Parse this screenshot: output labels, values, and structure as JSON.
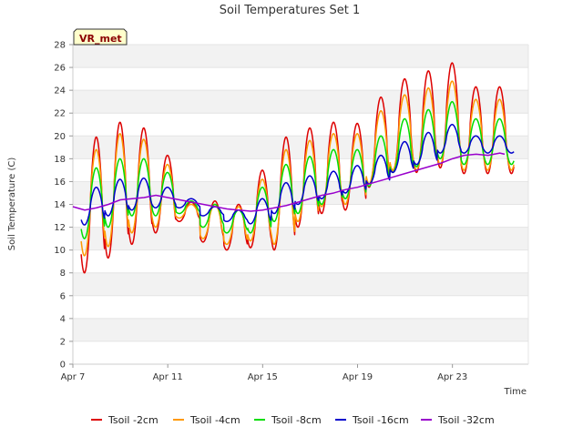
{
  "chart_data": {
    "type": "line",
    "title": "Soil Temperatures Set 1",
    "xlabel": "Time",
    "ylabel": "Soil Temperature (C)",
    "badge": "VR_met",
    "xlim": [
      0,
      19.2
    ],
    "ylim": [
      0,
      28
    ],
    "yticks": [
      0,
      2,
      4,
      6,
      8,
      10,
      12,
      14,
      16,
      18,
      20,
      22,
      24,
      26,
      28
    ],
    "xticks": [
      {
        "day": 0,
        "label": "Apr 7"
      },
      {
        "day": 4,
        "label": "Apr 11"
      },
      {
        "day": 8,
        "label": "Apr 15"
      },
      {
        "day": 12,
        "label": "Apr 19"
      },
      {
        "day": 16,
        "label": "Apr 23"
      }
    ],
    "grid": "horizontal alternating bands",
    "legend_position": "bottom",
    "series": [
      {
        "name": "Tsoil -2cm",
        "color": "#dd0000",
        "mins": [
          8.0,
          9.3,
          10.5,
          11.5,
          12.5,
          10.7,
          10.0,
          10.2,
          10.0,
          12.0,
          13.2,
          13.5,
          15.5,
          16.8,
          16.8,
          17.2,
          16.7
        ],
        "maxs": [
          19.9,
          21.2,
          20.7,
          18.3,
          14.2,
          14.3,
          14.0,
          17.0,
          19.9,
          20.7,
          21.2,
          21.1,
          23.4,
          25.0,
          25.7,
          26.4,
          24.3
        ]
      },
      {
        "name": "Tsoil -4cm",
        "color": "#ff9900",
        "mins": [
          9.5,
          10.3,
          11.5,
          12.0,
          12.8,
          11.0,
          10.5,
          10.8,
          10.5,
          12.5,
          13.8,
          14.0,
          15.8,
          17.0,
          17.0,
          17.5,
          17.0
        ],
        "maxs": [
          18.8,
          20.2,
          19.7,
          17.5,
          14.0,
          14.0,
          13.8,
          16.2,
          18.8,
          19.6,
          20.2,
          20.2,
          22.2,
          23.6,
          24.2,
          24.8,
          23.2
        ]
      },
      {
        "name": "Tsoil -8cm",
        "color": "#00dd00",
        "mins": [
          11.0,
          12.0,
          13.0,
          13.0,
          13.2,
          12.0,
          11.5,
          11.5,
          12.5,
          13.2,
          14.0,
          14.5,
          15.6,
          16.8,
          17.3,
          18.0,
          17.5
        ],
        "maxs": [
          17.2,
          18.0,
          18.0,
          16.8,
          14.3,
          14.0,
          13.5,
          15.5,
          17.5,
          18.2,
          18.8,
          18.8,
          20.0,
          21.5,
          22.3,
          23.0,
          21.5
        ]
      },
      {
        "name": "Tsoil -16cm",
        "color": "#0000cc",
        "mins": [
          12.2,
          13.0,
          13.5,
          13.7,
          13.7,
          13.0,
          12.5,
          12.3,
          13.2,
          14.0,
          14.5,
          15.0,
          15.8,
          16.8,
          17.5,
          18.5,
          18.5
        ],
        "maxs": [
          15.5,
          16.2,
          16.3,
          15.5,
          14.5,
          13.8,
          13.5,
          14.5,
          15.9,
          16.5,
          16.9,
          17.4,
          18.3,
          19.5,
          20.3,
          21.0,
          20.0
        ]
      },
      {
        "name": "Tsoil -32cm",
        "color": "#9900cc",
        "points": [
          [
            0,
            13.8
          ],
          [
            0.5,
            13.5
          ],
          [
            1,
            13.7
          ],
          [
            1.5,
            14.0
          ],
          [
            2,
            14.4
          ],
          [
            2.5,
            14.5
          ],
          [
            3,
            14.6
          ],
          [
            3.5,
            14.8
          ],
          [
            4,
            14.6
          ],
          [
            4.5,
            14.4
          ],
          [
            5,
            14.2
          ],
          [
            5.5,
            14.0
          ],
          [
            6,
            13.8
          ],
          [
            6.5,
            13.6
          ],
          [
            7,
            13.5
          ],
          [
            7.5,
            13.4
          ],
          [
            8,
            13.5
          ],
          [
            8.5,
            13.7
          ],
          [
            9,
            13.9
          ],
          [
            9.5,
            14.2
          ],
          [
            10,
            14.5
          ],
          [
            10.5,
            14.8
          ],
          [
            11,
            15.0
          ],
          [
            11.5,
            15.3
          ],
          [
            12,
            15.5
          ],
          [
            12.5,
            15.8
          ],
          [
            13,
            16.1
          ],
          [
            13.5,
            16.4
          ],
          [
            14,
            16.7
          ],
          [
            14.5,
            17.0
          ],
          [
            15,
            17.3
          ],
          [
            15.5,
            17.6
          ],
          [
            16,
            18.0
          ],
          [
            16.5,
            18.3
          ],
          [
            17,
            18.4
          ],
          [
            17.5,
            18.3
          ],
          [
            18,
            18.5
          ],
          [
            18.2,
            18.4
          ]
        ]
      }
    ]
  }
}
